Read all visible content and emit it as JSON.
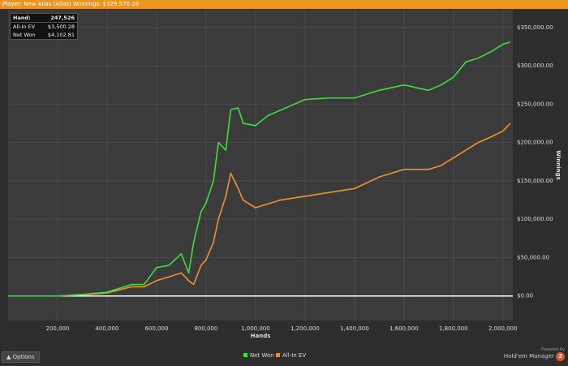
{
  "window": {
    "title": "Player: New Alias (Alias) Winnings: $329,570.26"
  },
  "tooltip": {
    "rows": [
      [
        "Hand:",
        "247,526"
      ],
      [
        "All-In EV",
        "$3,500.28"
      ],
      [
        "Net Won",
        "$4,102.81"
      ]
    ]
  },
  "footer": {
    "options": "Options",
    "powered": "Powered by",
    "brand": "Hold'em Manager",
    "brand_mark": "2"
  },
  "chart_data": {
    "type": "line",
    "xlabel": "Hands",
    "ylabel": "Winnings",
    "grid": true,
    "xlim": [
      0,
      2040000
    ],
    "ylim": [
      -32000,
      373000
    ],
    "xticks": [
      {
        "value": 200000,
        "label": "200,000"
      },
      {
        "value": 400000,
        "label": "400,000"
      },
      {
        "value": 600000,
        "label": "600,000"
      },
      {
        "value": 800000,
        "label": "800,000"
      },
      {
        "value": 1000000,
        "label": "1,000,000"
      },
      {
        "value": 1200000,
        "label": "1,200,000"
      },
      {
        "value": 1400000,
        "label": "1,400,000"
      },
      {
        "value": 1600000,
        "label": "1,600,000"
      },
      {
        "value": 1800000,
        "label": "1,800,000"
      },
      {
        "value": 2000000,
        "label": "2,000,000"
      }
    ],
    "yticks": [
      {
        "value": 0,
        "label": "$0.00"
      },
      {
        "value": 50000,
        "label": "$50,000.00"
      },
      {
        "value": 100000,
        "label": "$100,000.00"
      },
      {
        "value": 150000,
        "label": "$150,000.00"
      },
      {
        "value": 200000,
        "label": "$200,000.00"
      },
      {
        "value": 250000,
        "label": "$250,000.00"
      },
      {
        "value": 300000,
        "label": "$300,000.00"
      },
      {
        "value": 350000,
        "label": "$350,000.00"
      }
    ],
    "x": [
      0,
      200000,
      300000,
      400000,
      500000,
      550000,
      600000,
      650000,
      700000,
      730000,
      750000,
      780000,
      800000,
      830000,
      850000,
      880000,
      900000,
      930000,
      950000,
      1000000,
      1050000,
      1100000,
      1200000,
      1300000,
      1400000,
      1500000,
      1600000,
      1700000,
      1750000,
      1800000,
      1850000,
      1900000,
      1950000,
      2000000,
      2030000
    ],
    "series": [
      {
        "name": "Net Won",
        "color": "#3fdc3f",
        "values": [
          0,
          0,
          2000,
          5000,
          15000,
          15000,
          37000,
          40000,
          55000,
          30000,
          70000,
          110000,
          121000,
          150000,
          200000,
          190000,
          243000,
          245000,
          225000,
          222000,
          235000,
          242000,
          256000,
          258000,
          258000,
          268000,
          275000,
          268000,
          275000,
          285000,
          305000,
          310000,
          318000,
          328000,
          331000
        ]
      },
      {
        "name": "All-In EV",
        "color": "#f0922b",
        "values": [
          0,
          0,
          1500,
          4000,
          12000,
          12000,
          20000,
          25000,
          30000,
          20000,
          15000,
          40000,
          47000,
          70000,
          100000,
          130000,
          160000,
          140000,
          125000,
          115000,
          120000,
          125000,
          130000,
          135000,
          140000,
          155000,
          165000,
          165000,
          170000,
          180000,
          190000,
          200000,
          207000,
          215000,
          225000
        ]
      }
    ]
  }
}
